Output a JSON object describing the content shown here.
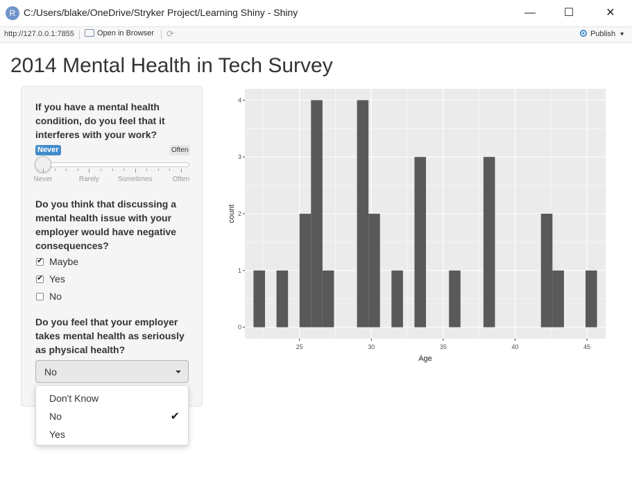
{
  "window": {
    "app_icon": "R",
    "title": "C:/Users/blake/OneDrive/Stryker Project/Learning Shiny - Shiny",
    "minimize_glyph": "—",
    "maximize_glyph": "☐",
    "close_glyph": "✕"
  },
  "toolbar": {
    "url": "http://127.0.0.1:7855",
    "open_in_browser": "Open in Browser",
    "refresh_glyph": "⟳",
    "publish_icon": "publish-icon",
    "publish": "Publish",
    "publish_caret": "▾"
  },
  "page": {
    "title": "2014 Mental Health in Tech Survey"
  },
  "work_interfere": {
    "question": "If you have a mental health condition, do you feel that it interferes with your work?",
    "value": "Never",
    "max_label": "Often",
    "value_fraction": 0,
    "ticks": [
      "Never",
      "Rarely",
      "Sometimes",
      "Often"
    ]
  },
  "mental_health_consequence": {
    "question": "Do you think that discussing a mental health issue with your employer would have negative consequences?",
    "check_glyph": "✔",
    "options": [
      {
        "label": "Maybe",
        "checked": true
      },
      {
        "label": "Yes",
        "checked": true
      },
      {
        "label": "No",
        "checked": false
      }
    ]
  },
  "mental_vs_physical": {
    "question": "Do you feel that your employer takes mental health as seriously as physical health?",
    "selected": "No",
    "selected_glyph": "✔",
    "options": [
      "Don't Know",
      "No",
      "Yes"
    ]
  },
  "colors": {
    "slider_min_badge": "#428bca",
    "panel_bg": "#ebebeb",
    "gridline": "#ffffff",
    "bar": "#595959"
  },
  "chart_data": {
    "type": "bar",
    "xlabel": "Age",
    "ylabel": "count",
    "x_ticks": [
      25,
      30,
      35,
      40,
      45
    ],
    "y_ticks": [
      0,
      1,
      2,
      3,
      4
    ],
    "xlim": [
      21.2,
      46.3
    ],
    "ylim": [
      -0.2,
      4.2
    ],
    "bin_width": 0.8,
    "grid": true,
    "bins": [
      {
        "x_start": 21.8,
        "count": 1
      },
      {
        "x_start": 23.4,
        "count": 1
      },
      {
        "x_start": 25.0,
        "count": 2
      },
      {
        "x_start": 25.8,
        "count": 4
      },
      {
        "x_start": 26.6,
        "count": 1
      },
      {
        "x_start": 29.0,
        "count": 4
      },
      {
        "x_start": 29.8,
        "count": 2
      },
      {
        "x_start": 31.4,
        "count": 1
      },
      {
        "x_start": 33.0,
        "count": 3
      },
      {
        "x_start": 35.4,
        "count": 1
      },
      {
        "x_start": 37.8,
        "count": 3
      },
      {
        "x_start": 41.8,
        "count": 2
      },
      {
        "x_start": 42.6,
        "count": 1
      },
      {
        "x_start": 44.9,
        "count": 1
      }
    ]
  }
}
